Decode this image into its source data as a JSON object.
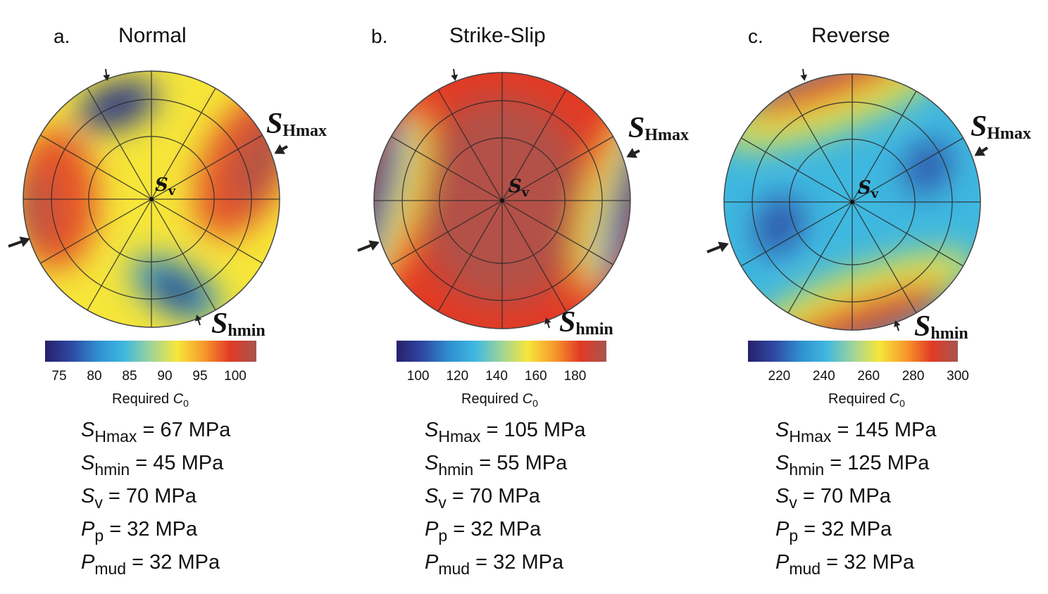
{
  "panels": [
    {
      "letter": "a.",
      "title": "Normal",
      "stereonet": {
        "center_label": {
          "symbol": "S",
          "sub": "v"
        },
        "top_right_label": {
          "symbol": "S",
          "sub": "Hmax"
        },
        "bottom_label": {
          "symbol": "S",
          "sub": "hmin"
        },
        "pattern": "normal"
      },
      "colorbar": {
        "ticks": [
          "75",
          "80",
          "85",
          "90",
          "95",
          "100"
        ],
        "title_prefix": "Required ",
        "title_symbol": "C",
        "title_sub": "0",
        "range": [
          73,
          103
        ]
      },
      "params": [
        {
          "sym": "S",
          "sub": "Hmax",
          "text": " = 67 MPa"
        },
        {
          "sym": "S",
          "sub": "hmin",
          "text": " = 45 MPa"
        },
        {
          "sym": "S",
          "sub": "v",
          "text": " = 70 MPa"
        },
        {
          "sym": "P",
          "sub": "p",
          "text": " = 32 MPa"
        },
        {
          "sym": "P",
          "sub": "mud",
          "text": " = 32 MPa"
        }
      ]
    },
    {
      "letter": "b.",
      "title": "Strike-Slip",
      "stereonet": {
        "center_label": {
          "symbol": "S",
          "sub": "v"
        },
        "top_right_label": {
          "symbol": "S",
          "sub": "Hmax"
        },
        "bottom_label": {
          "symbol": "S",
          "sub": "hmin"
        },
        "pattern": "strike-slip"
      },
      "colorbar": {
        "ticks": [
          "100",
          "120",
          "140",
          "160",
          "180"
        ],
        "title_prefix": "Required ",
        "title_symbol": "C",
        "title_sub": "0",
        "range": [
          89,
          196
        ]
      },
      "params": [
        {
          "sym": "S",
          "sub": "Hmax",
          "text": " = 105 MPa"
        },
        {
          "sym": "S",
          "sub": "hmin",
          "text": " = 55 MPa"
        },
        {
          "sym": "S",
          "sub": "v",
          "text": " = 70 MPa"
        },
        {
          "sym": "P",
          "sub": "p",
          "text": " = 32 MPa"
        },
        {
          "sym": "P",
          "sub": "mud",
          "text": " = 32 MPa"
        }
      ]
    },
    {
      "letter": "c.",
      "title": "Reverse",
      "stereonet": {
        "center_label": {
          "symbol": "S",
          "sub": "v"
        },
        "top_right_label": {
          "symbol": "S",
          "sub": "Hmax"
        },
        "bottom_label": {
          "symbol": "S",
          "sub": "hmin"
        },
        "pattern": "reverse"
      },
      "colorbar": {
        "ticks": [
          "220",
          "240",
          "260",
          "280",
          "300"
        ],
        "title_prefix": "Required ",
        "title_symbol": "C",
        "title_sub": "0",
        "range": [
          206,
          300
        ]
      },
      "params": [
        {
          "sym": "S",
          "sub": "Hmax",
          "text": " = 145 MPa"
        },
        {
          "sym": "S",
          "sub": "hmin",
          "text": " = 125 MPa"
        },
        {
          "sym": "S",
          "sub": "v",
          "text": " = 70 MPa"
        },
        {
          "sym": "P",
          "sub": "p",
          "text": " = 32 MPa"
        },
        {
          "sym": "P",
          "sub": "mud",
          "text": " = 32 MPa"
        }
      ]
    }
  ],
  "colormap": [
    "#27206b",
    "#2f49a4",
    "#2f8fd0",
    "#3fb8e0",
    "#9ed49a",
    "#f6e63a",
    "#f79b2b",
    "#e23a25",
    "#a7554f"
  ]
}
